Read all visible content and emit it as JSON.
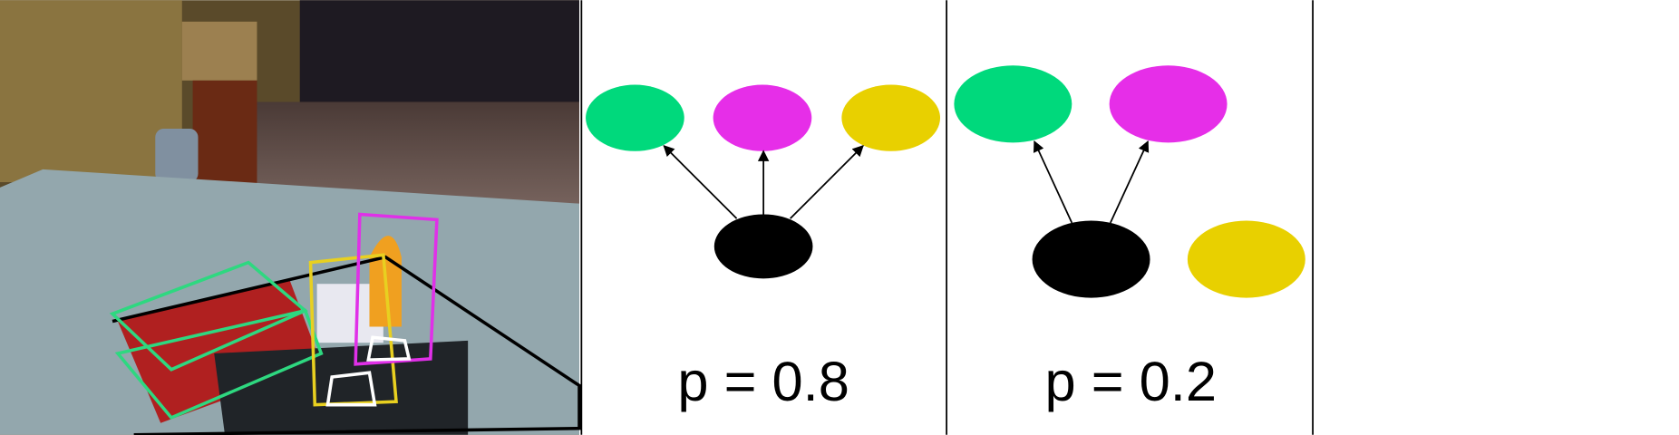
{
  "panels": [
    {
      "label": "p = 0.8"
    },
    {
      "label": "p = 0.2"
    }
  ]
}
